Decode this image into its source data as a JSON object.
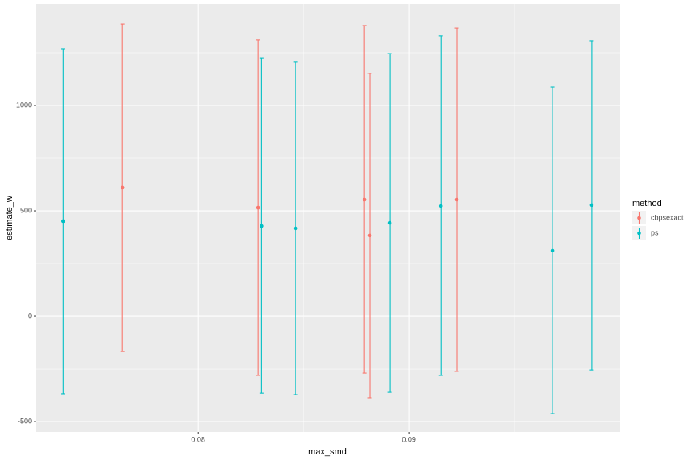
{
  "chart_data": {
    "type": "errorbar",
    "x_label": "max_smd",
    "y_label": "estimate_w",
    "legend_title": "method",
    "legend_position": "right",
    "xlim": [
      0.0723,
      0.1
    ],
    "xticks": [
      0.08,
      0.09
    ],
    "ylim": [
      -549,
      1481
    ],
    "yticks": [
      -500,
      0,
      500,
      1000
    ],
    "grid": true,
    "series": [
      {
        "name": "cbpsexact",
        "color": "#F8766D",
        "x": [
          0.0764,
          0.08284,
          0.08788,
          0.08814,
          0.09227
        ],
        "values": [
          610,
          515,
          553,
          383,
          553
        ],
        "lower": [
          -167,
          -280,
          -269,
          -386,
          -261
        ],
        "upper": [
          1386,
          1311,
          1379,
          1152,
          1367
        ]
      },
      {
        "name": "ps",
        "color": "#00BFC4",
        "x": [
          0.0736,
          0.083,
          0.08462,
          0.08909,
          0.09152,
          0.09682,
          0.09867
        ],
        "values": [
          451,
          428,
          417,
          443,
          523,
          311,
          527
        ],
        "lower": [
          -367,
          -364,
          -371,
          -360,
          -280,
          -462,
          -254
        ],
        "upper": [
          1269,
          1223,
          1205,
          1246,
          1330,
          1087,
          1307
        ]
      }
    ]
  }
}
